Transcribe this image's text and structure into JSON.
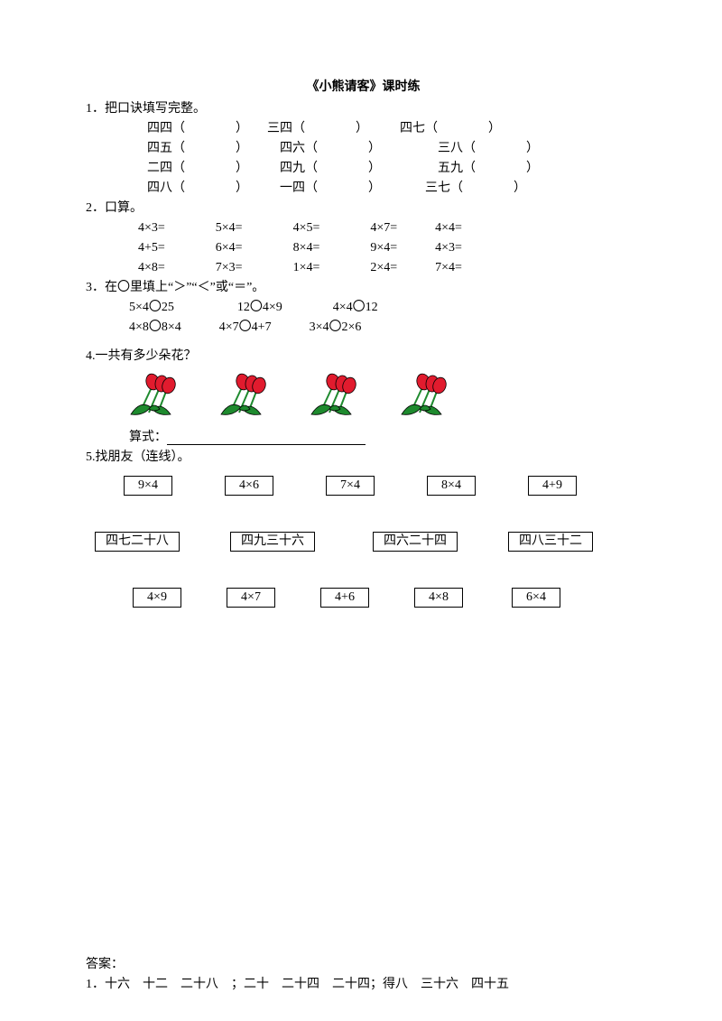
{
  "title": "《小熊请客》课时练",
  "q1": {
    "label": "1．把口诀填写完整。",
    "rows": [
      [
        "四四（　　　　）",
        "三四（　　　　）",
        "四七（　　　　）"
      ],
      [
        "四五（　　　　）",
        "四六（　　　　）",
        "三八（　　　　）"
      ],
      [
        "二四（　　　　）",
        "四九（　　　　）",
        "五九（　　　　）"
      ],
      [
        "四八（　　　　）",
        "一四（　　　　）",
        "三七（　　　　）"
      ]
    ]
  },
  "q2": {
    "label": "2．口算。",
    "rows": [
      [
        "4×3=",
        "5×4=",
        "4×5=",
        "4×7=",
        "4×4="
      ],
      [
        "4+5=",
        "6×4=",
        "8×4=",
        "9×4=",
        "4×3="
      ],
      [
        "4×8=",
        "7×3=",
        "1×4=",
        "2×4=",
        "7×4="
      ]
    ]
  },
  "q3": {
    "label": "3．在〇里填上“＞”“＜”或“＝”。",
    "rows": [
      [
        "5×4〇25",
        "12〇4×9",
        "4×4〇12"
      ],
      [
        "4×8〇8×4",
        "4×7〇4+7",
        "3×4〇2×6"
      ]
    ]
  },
  "q4": {
    "label": "4.一共有多少朵花？",
    "flower_count": 4,
    "flower_colors": {
      "petal": "#e11b2e",
      "leaf": "#1e8a2e",
      "stem": "#1e8a2e",
      "outline": "#000000"
    },
    "formula_label": "算式："
  },
  "q5": {
    "label": "5.找朋友（连线）。",
    "row1": [
      "9×4",
      "4×6",
      "7×4",
      "8×4",
      "4+9"
    ],
    "row2": [
      "四七二十八",
      "四九三十六",
      "四六二十四",
      "四八三十二"
    ],
    "row3": [
      "4×9",
      "4×7",
      "4+6",
      "4×8",
      "6×4"
    ]
  },
  "answer": {
    "label": "答案：",
    "line1": "1．十六　十二　二十八　；二十　二十四　二十四；得八　三十六　四十五"
  }
}
